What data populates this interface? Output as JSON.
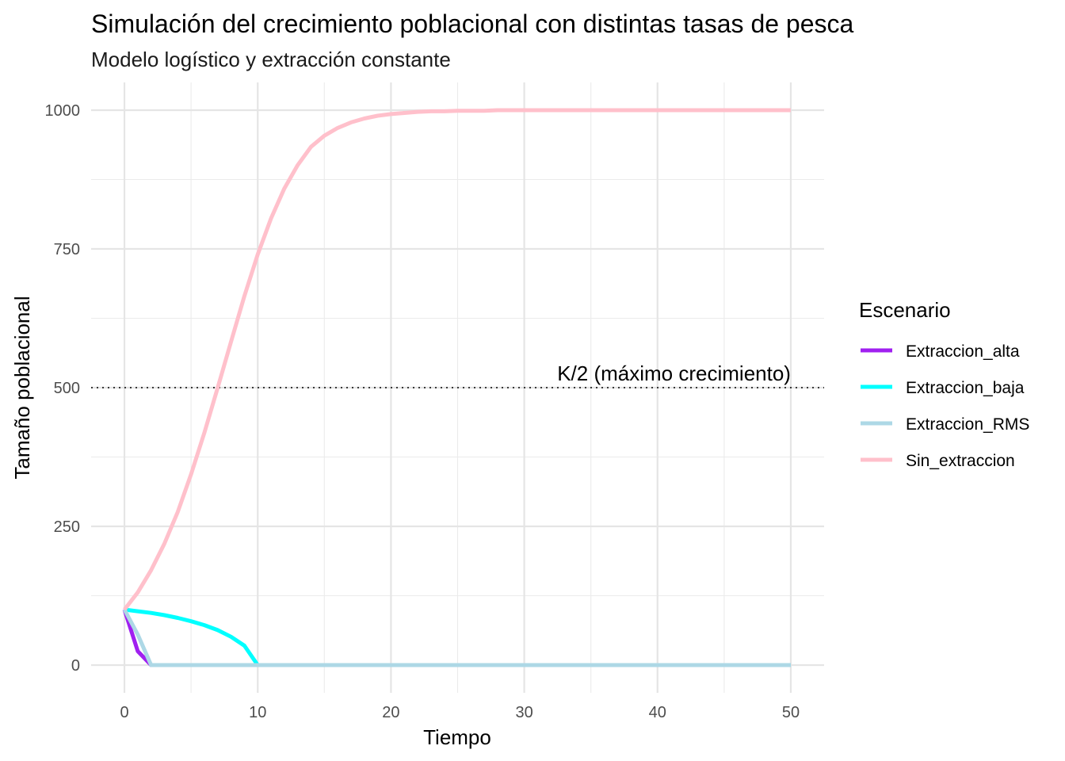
{
  "chart_data": {
    "type": "line",
    "title": "Simulación del crecimiento poblacional con distintas tasas de pesca",
    "subtitle": "Modelo logístico y extracción constante",
    "xlabel": "Tiempo",
    "ylabel": "Tamaño poblacional",
    "xlim": [
      -2.5,
      52.5
    ],
    "ylim": [
      -50,
      1050
    ],
    "x_ticks": [
      0,
      10,
      20,
      30,
      40,
      50
    ],
    "y_ticks": [
      0,
      250,
      500,
      750,
      1000
    ],
    "grid": true,
    "legend": {
      "title": "Escenario",
      "position": "right"
    },
    "reference_line": {
      "y": 500,
      "style": "dotted",
      "label": "K/2 (máximo crecimiento)"
    },
    "series": [
      {
        "name": "Extraccion_alta",
        "color": "#a020f0",
        "x": [
          0,
          1,
          2,
          3,
          4,
          5,
          6,
          7,
          8,
          9,
          10,
          11,
          12,
          13,
          14,
          15,
          16,
          17,
          18,
          19,
          20,
          21,
          22,
          23,
          24,
          25,
          26,
          27,
          28,
          29,
          30,
          31,
          32,
          33,
          34,
          35,
          36,
          37,
          38,
          39,
          40,
          41,
          42,
          43,
          44,
          45,
          46,
          47,
          48,
          49,
          50
        ],
        "y": [
          100,
          25,
          0,
          0,
          0,
          0,
          0,
          0,
          0,
          0,
          0,
          0,
          0,
          0,
          0,
          0,
          0,
          0,
          0,
          0,
          0,
          0,
          0,
          0,
          0,
          0,
          0,
          0,
          0,
          0,
          0,
          0,
          0,
          0,
          0,
          0,
          0,
          0,
          0,
          0,
          0,
          0,
          0,
          0,
          0,
          0,
          0,
          0,
          0,
          0,
          0
        ]
      },
      {
        "name": "Extraccion_baja",
        "color": "#00ffff",
        "x": [
          0,
          1,
          2,
          3,
          4,
          5,
          6,
          7,
          8,
          9,
          10,
          11,
          12,
          13,
          14,
          15,
          16,
          17,
          18,
          19,
          20,
          21,
          22,
          23,
          24,
          25,
          26,
          27,
          28,
          29,
          30,
          31,
          32,
          33,
          34,
          35,
          36,
          37,
          38,
          39,
          40,
          41,
          42,
          43,
          44,
          45,
          46,
          47,
          48,
          49,
          50
        ],
        "y": [
          100,
          97,
          94,
          90,
          85,
          79,
          72,
          63,
          51,
          35,
          0,
          0,
          0,
          0,
          0,
          0,
          0,
          0,
          0,
          0,
          0,
          0,
          0,
          0,
          0,
          0,
          0,
          0,
          0,
          0,
          0,
          0,
          0,
          0,
          0,
          0,
          0,
          0,
          0,
          0,
          0,
          0,
          0,
          0,
          0,
          0,
          0,
          0,
          0,
          0,
          0
        ]
      },
      {
        "name": "Extraccion_RMS",
        "color": "#add8e6",
        "x": [
          0,
          1,
          2,
          3,
          4,
          5,
          6,
          7,
          8,
          9,
          10,
          11,
          12,
          13,
          14,
          15,
          16,
          17,
          18,
          19,
          20,
          21,
          22,
          23,
          24,
          25,
          26,
          27,
          28,
          29,
          30,
          31,
          32,
          33,
          34,
          35,
          36,
          37,
          38,
          39,
          40,
          41,
          42,
          43,
          44,
          45,
          46,
          47,
          48,
          49,
          50
        ],
        "y": [
          100,
          55,
          0,
          0,
          0,
          0,
          0,
          0,
          0,
          0,
          0,
          0,
          0,
          0,
          0,
          0,
          0,
          0,
          0,
          0,
          0,
          0,
          0,
          0,
          0,
          0,
          0,
          0,
          0,
          0,
          0,
          0,
          0,
          0,
          0,
          0,
          0,
          0,
          0,
          0,
          0,
          0,
          0,
          0,
          0,
          0,
          0,
          0,
          0,
          0,
          0
        ]
      },
      {
        "name": "Sin_extraccion",
        "color": "#ffc0cb",
        "x": [
          0,
          1,
          2,
          3,
          4,
          5,
          6,
          7,
          8,
          9,
          10,
          11,
          12,
          13,
          14,
          15,
          16,
          17,
          18,
          19,
          20,
          21,
          22,
          23,
          24,
          25,
          26,
          27,
          28,
          29,
          30,
          31,
          32,
          33,
          34,
          35,
          36,
          37,
          38,
          39,
          40,
          41,
          42,
          43,
          44,
          45,
          46,
          47,
          48,
          49,
          50
        ],
        "y": [
          100,
          131,
          171,
          219,
          276,
          344,
          419,
          500,
          583,
          665,
          740,
          805,
          859,
          901,
          934,
          954,
          968,
          978,
          985,
          990,
          993,
          995,
          997,
          998,
          998,
          999,
          999,
          999,
          1000,
          1000,
          1000,
          1000,
          1000,
          1000,
          1000,
          1000,
          1000,
          1000,
          1000,
          1000,
          1000,
          1000,
          1000,
          1000,
          1000,
          1000,
          1000,
          1000,
          1000,
          1000,
          1000
        ]
      }
    ]
  }
}
